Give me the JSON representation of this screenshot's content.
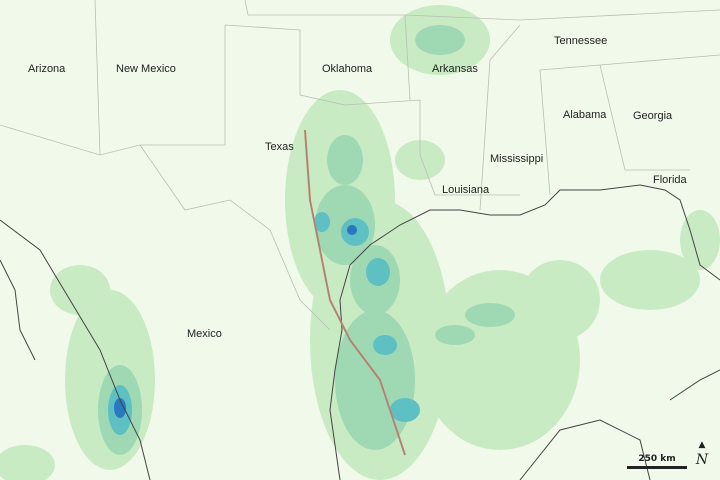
{
  "labels": {
    "arizona": "Arizona",
    "new_mexico": "New Mexico",
    "oklahoma": "Oklahoma",
    "arkansas": "Arkansas",
    "tennessee": "Tennessee",
    "texas": "Texas",
    "alabama": "Alabama",
    "georgia": "Georgia",
    "mississippi": "Mississippi",
    "louisiana": "Louisiana",
    "florida": "Florida",
    "mexico": "Mexico"
  },
  "scale_bar": {
    "label": "250 km"
  },
  "north_arrow": {
    "arrow": "▲",
    "letter": "N"
  },
  "colors": {
    "land": "#f1f9ea",
    "rain_light": "#c9ebc4",
    "rain_medium": "#9fd9b4",
    "rain_heavy": "#5fc0c4",
    "rain_extreme": "#2a78c0",
    "storm_track": "#c9826e",
    "coastline": "#444444",
    "borders": "#b8bfb4"
  }
}
